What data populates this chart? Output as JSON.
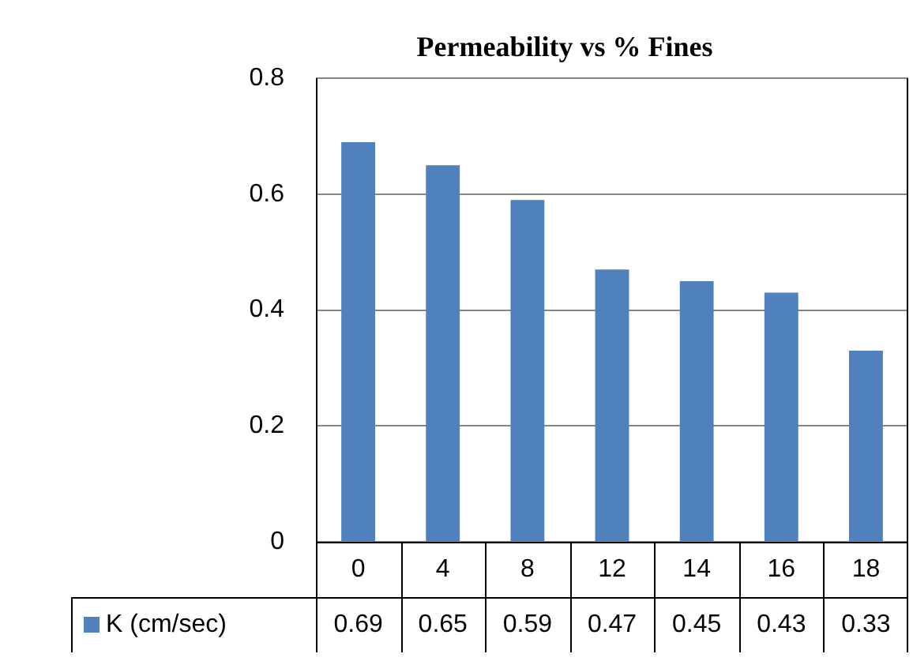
{
  "chart_data": {
    "type": "bar",
    "title": "Permeability vs % Fines",
    "categories": [
      "0",
      "4",
      "8",
      "12",
      "14",
      "16",
      "18"
    ],
    "series": [
      {
        "name": "K (cm/sec)",
        "color": "#4f81bd",
        "values": [
          0.69,
          0.65,
          0.59,
          0.47,
          0.45,
          0.43,
          0.33
        ]
      }
    ],
    "ylim": [
      0,
      0.8
    ],
    "yticks": [
      0,
      0.2,
      0.4,
      0.6,
      0.8
    ],
    "grid": "y",
    "legend": "bottom",
    "data_labels": true
  }
}
